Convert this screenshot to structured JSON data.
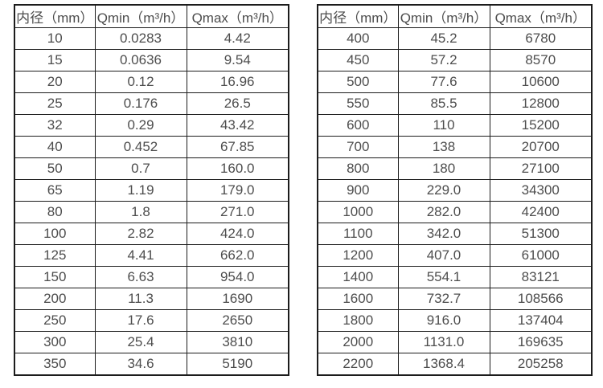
{
  "tables": [
    {
      "name": "small-diameter-spec-table",
      "headers": [
        "内径（mm）",
        "Qmin（m³/h）",
        "Qmax（m³/h）"
      ],
      "rows": [
        [
          "10",
          "0.0283",
          "4.42"
        ],
        [
          "15",
          "0.0636",
          "9.54"
        ],
        [
          "20",
          "0.12",
          "16.96"
        ],
        [
          "25",
          "0.176",
          "26.5"
        ],
        [
          "32",
          "0.29",
          "43.42"
        ],
        [
          "40",
          "0.452",
          "67.85"
        ],
        [
          "50",
          "0.7",
          "160.0"
        ],
        [
          "65",
          "1.19",
          "179.0"
        ],
        [
          "80",
          "1.8",
          "271.0"
        ],
        [
          "100",
          "2.82",
          "424.0"
        ],
        [
          "125",
          "4.41",
          "662.0"
        ],
        [
          "150",
          "6.63",
          "954.0"
        ],
        [
          "200",
          "11.3",
          "1690"
        ],
        [
          "250",
          "17.6",
          "2650"
        ],
        [
          "300",
          "25.4",
          "3810"
        ],
        [
          "350",
          "34.6",
          "5190"
        ]
      ]
    },
    {
      "name": "large-diameter-spec-table",
      "headers": [
        "内径（mm）",
        "Qmin（m³/h）",
        "Qmax（m³/h）"
      ],
      "rows": [
        [
          "400",
          "45.2",
          "6780"
        ],
        [
          "450",
          "57.2",
          "8570"
        ],
        [
          "500",
          "77.6",
          "10600"
        ],
        [
          "550",
          "85.5",
          "12800"
        ],
        [
          "600",
          "110",
          "15200"
        ],
        [
          "700",
          "138",
          "20700"
        ],
        [
          "800",
          "180",
          "27100"
        ],
        [
          "900",
          "229.0",
          "34300"
        ],
        [
          "1000",
          "282.0",
          "42400"
        ],
        [
          "1100",
          "342.0",
          "51300"
        ],
        [
          "1200",
          "407.0",
          "61000"
        ],
        [
          "1400",
          "554.1",
          "83121"
        ],
        [
          "1600",
          "732.7",
          "108566"
        ],
        [
          "1800",
          "916.0",
          "137404"
        ],
        [
          "2000",
          "1131.0",
          "169635"
        ],
        [
          "2200",
          "1368.4",
          "205258"
        ]
      ]
    }
  ],
  "colors": {
    "border": "#1c1c1c",
    "text": "#4d4d4d",
    "background": "#ffffff"
  }
}
